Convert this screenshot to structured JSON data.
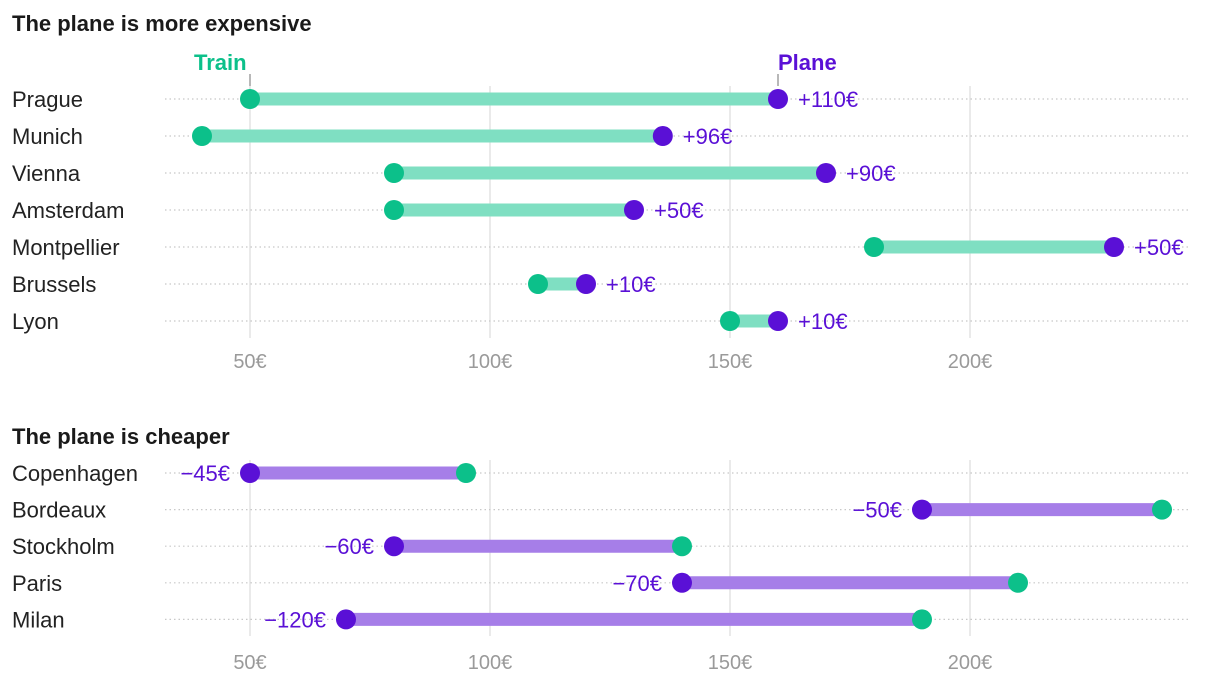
{
  "chart_data": [
    {
      "type": "dumbbell",
      "title": "The plane is more expensive",
      "legend": {
        "start_label": "Train",
        "end_label": "Plane",
        "placement": "top"
      },
      "xlim": [
        32,
        242
      ],
      "ticks": [
        {
          "value": 50,
          "label": "50€"
        },
        {
          "value": 100,
          "label": "100€"
        },
        {
          "value": 150,
          "label": "150€"
        },
        {
          "value": 200,
          "label": "200€"
        }
      ],
      "rows": [
        {
          "category": "Prague",
          "train": 50,
          "plane": 160,
          "diff_label": "+110€"
        },
        {
          "category": "Munich",
          "train": 40,
          "plane": 136,
          "diff_label": "+96€"
        },
        {
          "category": "Vienna",
          "train": 80,
          "plane": 170,
          "diff_label": "+90€"
        },
        {
          "category": "Amsterdam",
          "train": 80,
          "plane": 130,
          "diff_label": "+50€"
        },
        {
          "category": "Montpellier",
          "train": 180,
          "plane": 230,
          "diff_label": "+50€"
        },
        {
          "category": "Brussels",
          "train": 110,
          "plane": 120,
          "diff_label": "+10€"
        },
        {
          "category": "Lyon",
          "train": 150,
          "plane": 160,
          "diff_label": "+10€"
        }
      ]
    },
    {
      "type": "dumbbell",
      "title": "The plane is cheaper",
      "xlim": [
        32,
        242
      ],
      "ticks": [
        {
          "value": 50,
          "label": "50€"
        },
        {
          "value": 100,
          "label": "100€"
        },
        {
          "value": 150,
          "label": "150€"
        },
        {
          "value": 200,
          "label": "200€"
        }
      ],
      "rows": [
        {
          "category": "Copenhagen",
          "train": 95,
          "plane": 50,
          "diff_label": "−45€"
        },
        {
          "category": "Bordeaux",
          "train": 240,
          "plane": 190,
          "diff_label": "−50€"
        },
        {
          "category": "Stockholm",
          "train": 140,
          "plane": 80,
          "diff_label": "−60€"
        },
        {
          "category": "Paris",
          "train": 210,
          "plane": 140,
          "diff_label": "−70€"
        },
        {
          "category": "Milan",
          "train": 190,
          "plane": 70,
          "diff_label": "−120€"
        }
      ]
    }
  ],
  "colors": {
    "train": "#0cc08a",
    "plane": "#5a10d6",
    "bar_expensive": "#7fdfc2",
    "bar_cheaper": "#a67ee8",
    "grid": "#dddddd",
    "row_line": "#c8c8c8"
  }
}
